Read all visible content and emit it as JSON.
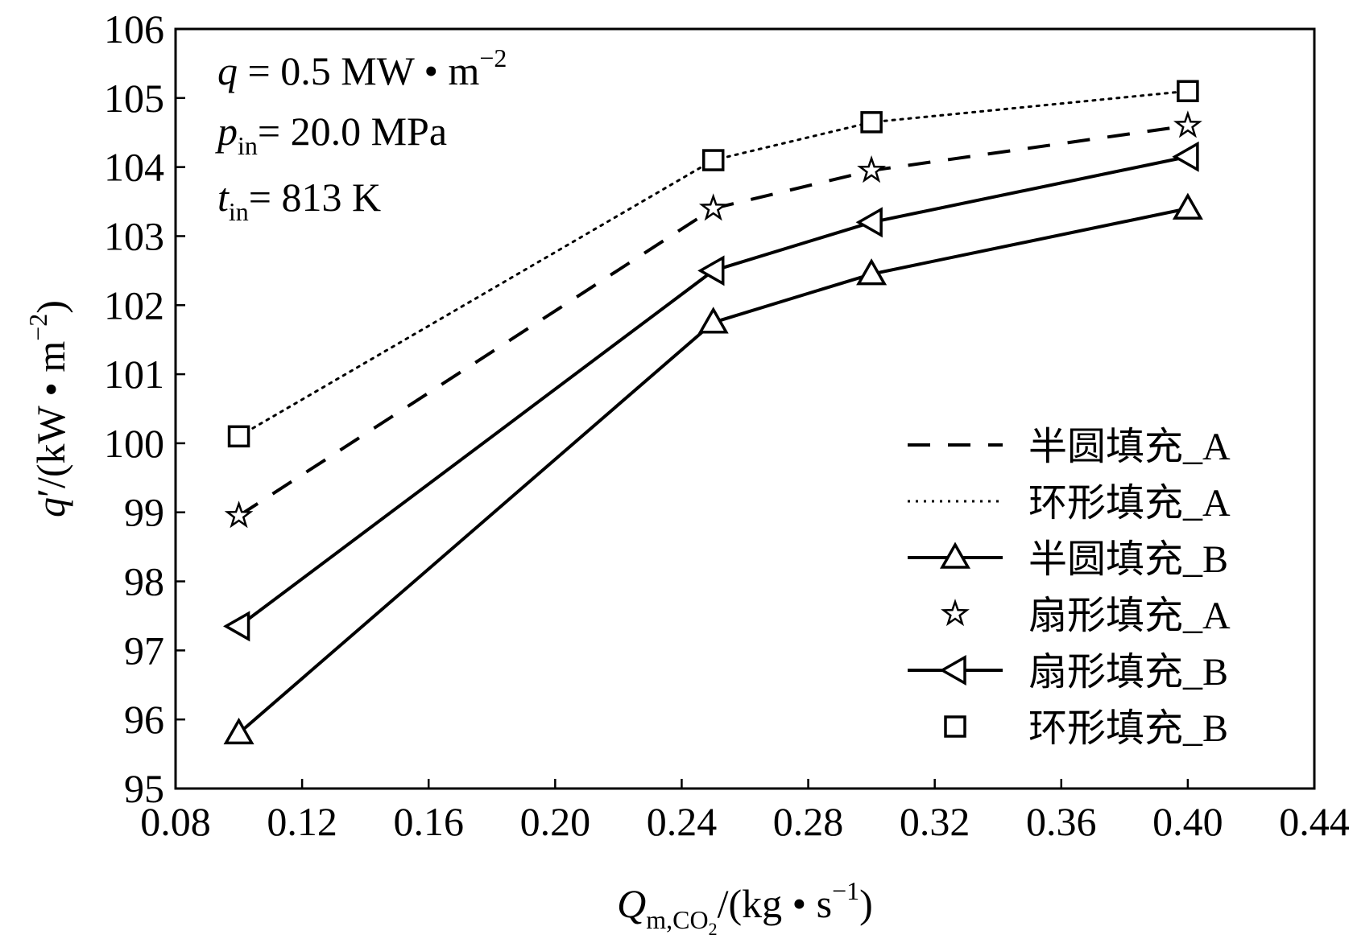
{
  "chart_data": {
    "type": "line",
    "title": "",
    "xlabel": {
      "main": "Q",
      "sub": "m,CO",
      "sub2": "2",
      "unit": "/(kg • s",
      "sup": "−1",
      "close": ")"
    },
    "ylabel": {
      "main": "q",
      "prime": "′",
      "unit": "/(kW • m",
      "sup": "−2",
      "close": ")"
    },
    "xlim": [
      0.08,
      0.44
    ],
    "ylim": [
      95,
      106
    ],
    "xticks": [
      "0.08",
      "0.12",
      "0.16",
      "0.20",
      "0.24",
      "0.28",
      "0.32",
      "0.36",
      "0.40",
      "0.44"
    ],
    "yticks": [
      "95",
      "96",
      "97",
      "98",
      "99",
      "100",
      "101",
      "102",
      "103",
      "104",
      "105",
      "106"
    ],
    "grid": false,
    "legend_position": "right",
    "annotations": [
      {
        "var": "q",
        "sub": "",
        "text": " = 0.5 MW • m",
        "sup": "−2"
      },
      {
        "var": "p",
        "sub": "in",
        "text": "= 20.0 MPa",
        "sup": ""
      },
      {
        "var": "t",
        "sub": "in",
        "text": "= 813 K",
        "sup": ""
      }
    ],
    "x": [
      0.1,
      0.25,
      0.3,
      0.4
    ],
    "series": [
      {
        "name": "半圆填充_A",
        "style": "dashed",
        "marker": "none",
        "values": [
          98.95,
          103.4,
          103.95,
          104.6
        ]
      },
      {
        "name": "环形填充_A",
        "style": "dotted",
        "marker": "none",
        "values": [
          100.1,
          104.1,
          104.65,
          105.1
        ]
      },
      {
        "name": "半圆填充_B",
        "style": "solid",
        "marker": "triangle-up",
        "values": [
          95.8,
          101.75,
          102.45,
          103.4
        ]
      },
      {
        "name": "扇形填充_A",
        "style": "none",
        "marker": "star",
        "values": [
          98.95,
          103.4,
          103.95,
          104.6
        ]
      },
      {
        "name": "扇形填充_B",
        "style": "solid",
        "marker": "triangle-left",
        "values": [
          97.35,
          102.5,
          103.2,
          104.15
        ]
      },
      {
        "name": "环形填充_B",
        "style": "none",
        "marker": "square",
        "values": [
          100.1,
          104.1,
          104.65,
          105.1
        ]
      }
    ]
  }
}
